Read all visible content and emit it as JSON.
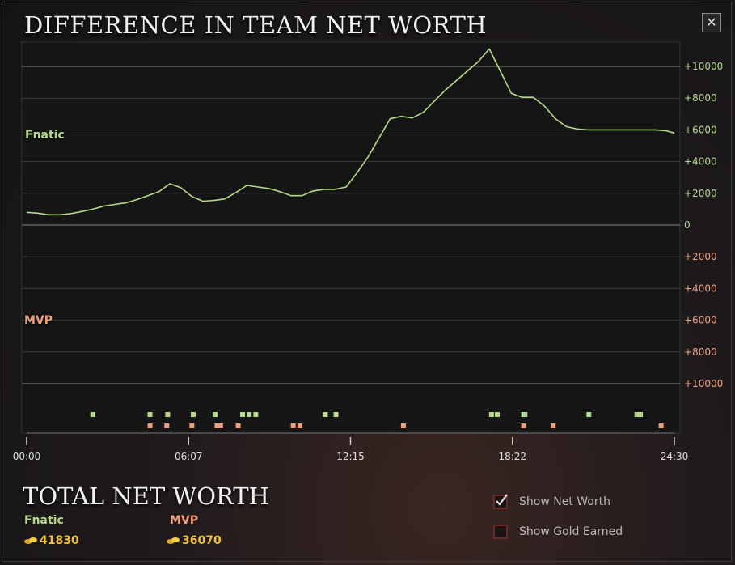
{
  "title": "DIFFERENCE IN TEAM NET WORTH",
  "close_label": "✕",
  "teams": {
    "top": {
      "name": "Fnatic",
      "color": "#b5d98a"
    },
    "bottom": {
      "name": "MVP",
      "color": "#f0a07c"
    }
  },
  "chart_data": {
    "type": "line",
    "x_tick_labels": [
      "00:00",
      "06:07",
      "12:15",
      "18:22",
      "24:30"
    ],
    "x_range_seconds": [
      0,
      1470
    ],
    "y_tick_labels": [
      "+10000",
      "+8000",
      "+6000",
      "+4000",
      "+2000",
      "0",
      "+2000",
      "+4000",
      "+6000",
      "+8000",
      "+10000"
    ],
    "ylim": [
      -10000,
      10000
    ],
    "line_color": "#b5d98a",
    "series": [
      {
        "x": [
          0,
          25,
          50,
          75,
          100,
          125,
          150,
          175,
          200,
          225,
          250,
          275,
          300,
          325,
          350,
          375,
          400,
          425,
          450,
          475,
          500,
          525,
          550,
          575,
          600,
          625,
          650,
          675,
          700,
          725,
          750,
          775,
          800,
          825,
          850,
          875,
          900,
          925,
          950,
          975,
          1000,
          1025,
          1050,
          1075,
          1100,
          1125,
          1150,
          1175,
          1200,
          1225,
          1250,
          1275,
          1300,
          1325,
          1350,
          1375,
          1400,
          1425,
          1450,
          1470
        ],
        "y": [
          800,
          750,
          650,
          650,
          720,
          850,
          1000,
          1200,
          1300,
          1400,
          1600,
          1850,
          2100,
          2600,
          2350,
          1800,
          1500,
          1550,
          1650,
          2050,
          2500,
          2400,
          2300,
          2100,
          1850,
          1850,
          2150,
          2250,
          2250,
          2400,
          3300,
          4300,
          5500,
          6700,
          6850,
          6750,
          7100,
          7800,
          8500,
          9100,
          9700,
          10300,
          11100,
          9700,
          8300,
          8050,
          8050,
          7500,
          6700,
          6200,
          6050,
          6000,
          6000,
          6000,
          6000,
          6000,
          6000,
          6000,
          5950,
          5800
        ]
      }
    ],
    "events_top_seconds": [
      150,
      280,
      320,
      378,
      428,
      490,
      505,
      520,
      678,
      702,
      1055,
      1068,
      1128,
      1131,
      1276,
      1385,
      1393
    ],
    "events_bottom_seconds": [
      280,
      318,
      375,
      432,
      440,
      480,
      605,
      620,
      855,
      1128,
      1195,
      1440
    ]
  },
  "totals": {
    "title": "TOTAL NET WORTH",
    "teams": [
      {
        "name": "Fnatic",
        "value": "41830",
        "color": "#b5d98a"
      },
      {
        "name": "MVP",
        "value": "36070",
        "color": "#f0a07c"
      }
    ]
  },
  "options": [
    {
      "label": "Show Net Worth",
      "checked": true
    },
    {
      "label": "Show Gold Earned",
      "checked": false
    }
  ]
}
